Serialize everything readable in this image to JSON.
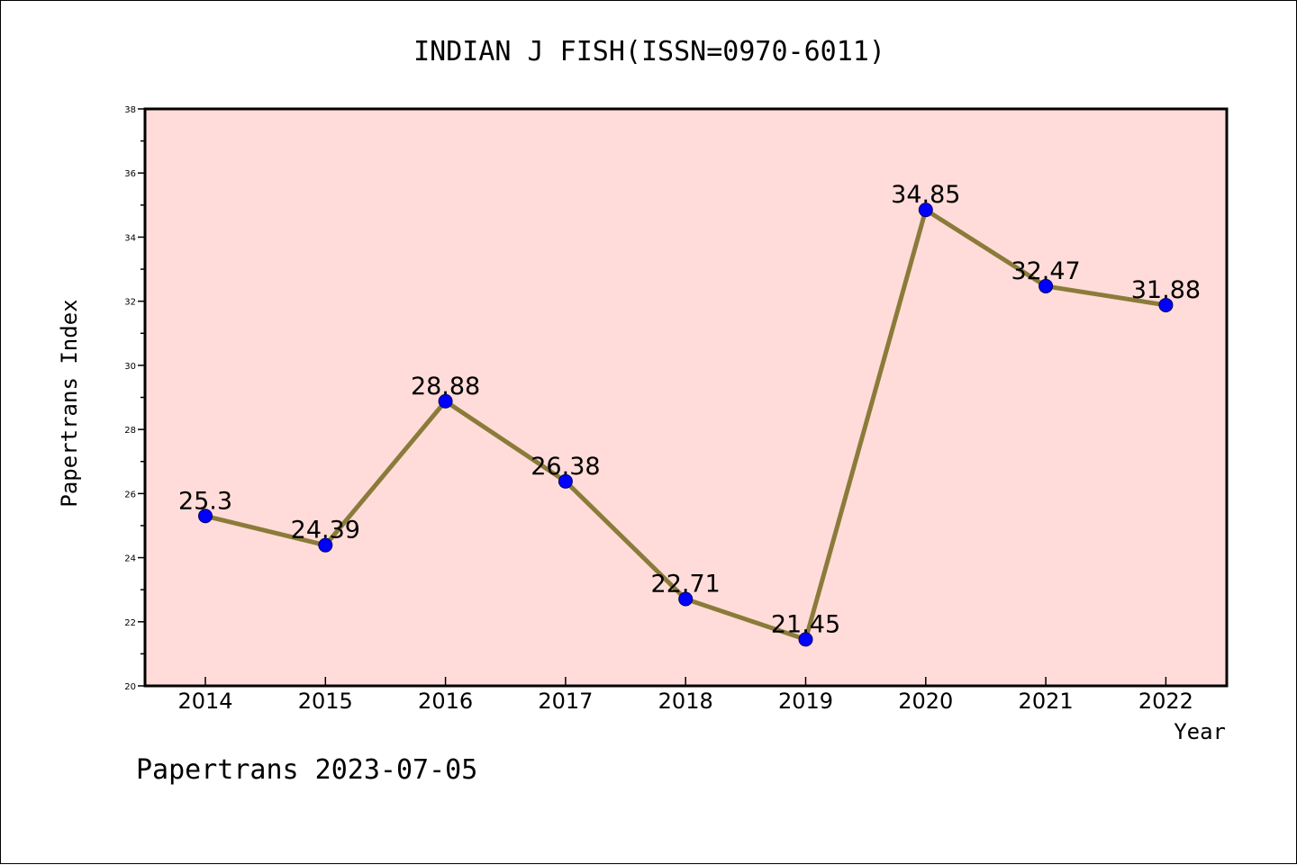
{
  "chart_data": {
    "type": "line",
    "title": "INDIAN J FISH(ISSN=0970-6011)",
    "xlabel": "Year",
    "ylabel": "Papertrans Index",
    "footer": "Papertrans 2023-07-05",
    "categories": [
      "2014",
      "2015",
      "2016",
      "2017",
      "2018",
      "2019",
      "2020",
      "2021",
      "2022"
    ],
    "series": [
      {
        "values": [
          25.3,
          24.39,
          28.88,
          26.38,
          22.71,
          21.45,
          34.85,
          32.47,
          31.88
        ],
        "labels": [
          "25.3",
          "24.39",
          "28.88",
          "26.38",
          "22.71",
          "21.45",
          "34.85",
          "32.47",
          "31.88"
        ]
      }
    ],
    "ylim": [
      20,
      38
    ],
    "yticks": [
      "20",
      "22",
      "24",
      "26",
      "28",
      "30",
      "32",
      "34",
      "36",
      "38"
    ],
    "grid": false,
    "legend": "none",
    "colors": {
      "plot_background": "#ffdcd9",
      "line": "#8b7b3a",
      "marker": "#0000ff",
      "axis": "#000000"
    }
  }
}
